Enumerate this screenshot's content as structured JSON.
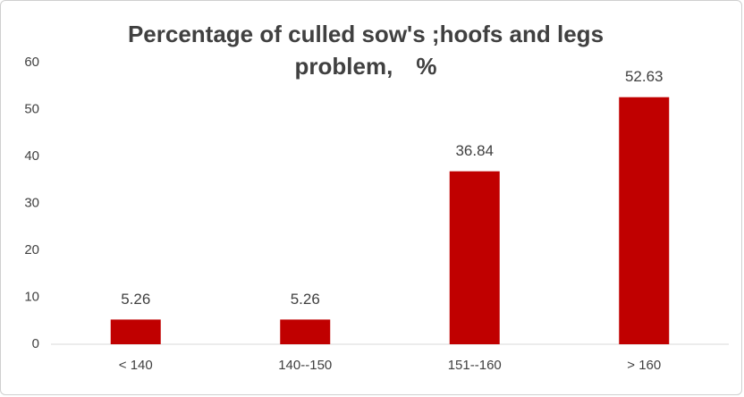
{
  "chart_data": {
    "type": "bar",
    "title": "Percentage of culled sow's ;hoofs and legs problem,　%",
    "categories": [
      "< 140",
      "140--150",
      "151--160",
      "> 160"
    ],
    "values": [
      5.26,
      5.26,
      36.84,
      52.63
    ],
    "color": "#c00000",
    "ylim": [
      0,
      60
    ],
    "yticks": [
      0,
      10,
      20,
      30,
      40,
      50,
      60
    ],
    "grid": false,
    "data_labels": true
  }
}
